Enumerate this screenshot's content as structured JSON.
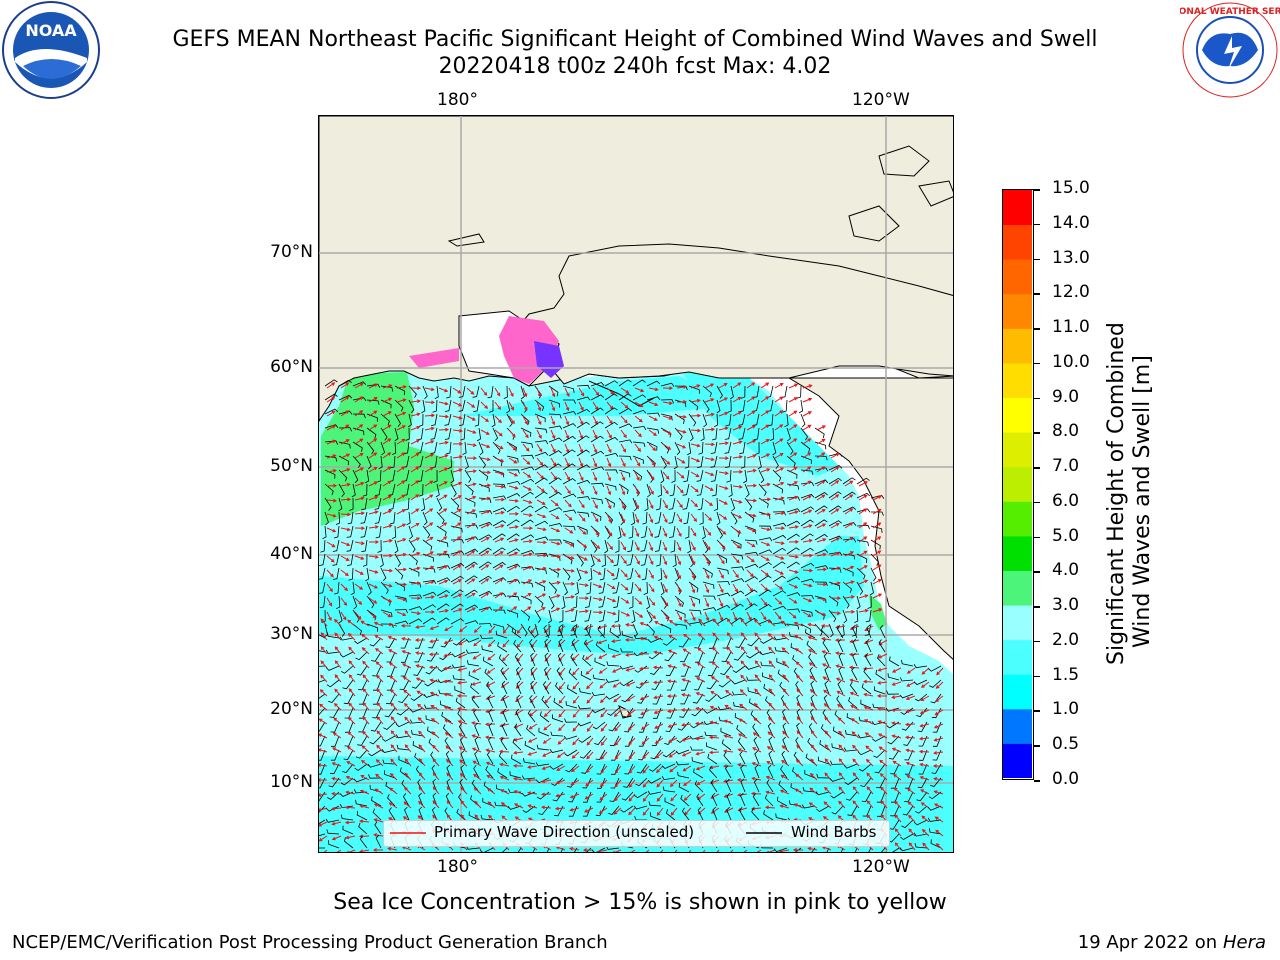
{
  "header": {
    "title_line1": "GEFS MEAN Northeast Pacific Significant Height of Combined Wind Waves and Swell",
    "title_line2": "20220418 t00z 240h fcst   Max: 4.02"
  },
  "logos": {
    "left": {
      "text": "NOAA"
    },
    "right": {
      "text": "NATIONAL WEATHER SERVICE"
    }
  },
  "map": {
    "lon_labels": [
      "180°",
      "120°W"
    ],
    "lat_labels": [
      "70°N",
      "60°N",
      "50°N",
      "40°N",
      "30°N",
      "20°N",
      "10°N"
    ],
    "colors": {
      "land": "#efedde",
      "ocean_low": "#00ffff",
      "ocean_mid": "#99ffff",
      "ocean_high": "#4cf57a",
      "arrows": "#ee1111",
      "barbs": "#000000"
    }
  },
  "legend": {
    "wave_label": "Primary Wave Direction (unscaled)",
    "barb_label": "Wind Barbs"
  },
  "colorbar": {
    "label_line1": "Significant Height of Combined",
    "label_line2": "Wind Waves and Swell [m]",
    "ticks": [
      "0.0",
      "0.5",
      "1.0",
      "1.5",
      "2.0",
      "3.0",
      "4.0",
      "5.0",
      "6.0",
      "7.0",
      "8.0",
      "9.0",
      "10.0",
      "11.0",
      "12.0",
      "13.0",
      "14.0",
      "15.0"
    ],
    "colors": [
      "#0000ff",
      "#0077ff",
      "#00ffff",
      "#4cffff",
      "#99ffff",
      "#4cf57a",
      "#00e000",
      "#55ee00",
      "#bbee00",
      "#ddee00",
      "#ffff00",
      "#ffdd00",
      "#ffbb00",
      "#ff8800",
      "#ff6600",
      "#ff4400",
      "#ff0000"
    ]
  },
  "caption": "Sea Ice Concentration > 15% is shown in pink to yellow",
  "footer": {
    "left": "NCEP/EMC/Verification Post Processing Product Generation Branch",
    "date": "19 Apr 2022 on",
    "machine": "Hera"
  }
}
